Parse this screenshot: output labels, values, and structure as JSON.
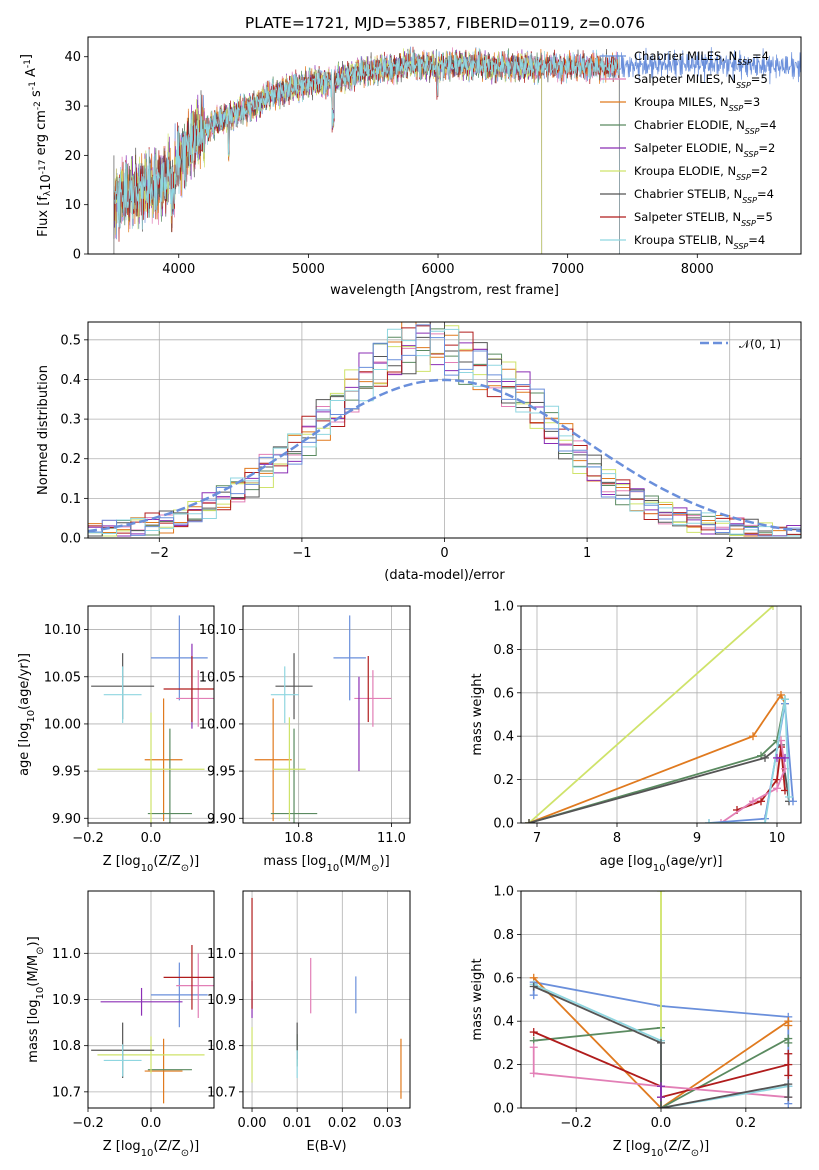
{
  "title": "PLATE=1721, MJD=53857, FIBERID=0119, z=0.076",
  "colors": {
    "chabrier_miles": "#6a8fdb",
    "salpeter_miles": "#e27fb6",
    "kroupa_miles": "#e07a1f",
    "chabrier_elodie": "#5a8a60",
    "salpeter_elodie": "#8b2fb5",
    "kroupa_elodie": "#cfe36a",
    "chabrier_stelib": "#555555",
    "salpeter_stelib": "#b01c1c",
    "kroupa_stelib": "#8fd6e0",
    "normal": "#6a8fdb"
  },
  "chart_data": [
    {
      "id": "spectrum",
      "type": "line",
      "xlabel": "wavelength [Angstrom, rest frame]",
      "ylabel": "Flux [f",
      "ylabel_sub": "λ",
      "ylabel_rest": "10",
      "ylabel_sup1": "-17",
      "ylabel_rest2": " erg cm",
      "ylabel_sup2": "-2",
      "ylabel_rest3": " s",
      "ylabel_sup3": "-1",
      "ylabel_rest4": " A",
      "ylabel_sup4": "-1",
      "ylabel_end": "]",
      "xlim": [
        3300,
        8800
      ],
      "ylim": [
        0,
        44
      ],
      "xticks": [
        "4000",
        "5000",
        "6000",
        "7000",
        "8000"
      ],
      "xtick_values": [
        4000,
        5000,
        6000,
        7000,
        8000
      ],
      "yticks": [
        "0",
        "10",
        "20",
        "30",
        "40"
      ],
      "ytick_values": [
        0,
        10,
        20,
        30,
        40
      ],
      "legend_position": "upper right",
      "continuum": [
        [
          3500,
          11
        ],
        [
          3700,
          13
        ],
        [
          3900,
          15
        ],
        [
          4000,
          19
        ],
        [
          4100,
          23
        ],
        [
          4300,
          27
        ],
        [
          4500,
          29
        ],
        [
          4700,
          32
        ],
        [
          4900,
          34
        ],
        [
          5100,
          35
        ],
        [
          5200,
          35
        ],
        [
          5400,
          37
        ],
        [
          5600,
          37.5
        ],
        [
          5800,
          38.5
        ],
        [
          6000,
          38
        ],
        [
          6200,
          38.5
        ],
        [
          6400,
          38
        ],
        [
          6600,
          38
        ],
        [
          6800,
          38
        ],
        [
          7000,
          38
        ],
        [
          7200,
          38
        ],
        [
          7400,
          38
        ],
        [
          7800,
          38.5
        ],
        [
          8200,
          38.5
        ],
        [
          8700,
          38
        ]
      ],
      "series": [
        {
          "name": "Chabrier MILES",
          "nssp": "4",
          "color_key": "chabrier_miles",
          "end": 8800
        },
        {
          "name": "Salpeter MILES",
          "nssp": "5",
          "color_key": "salpeter_miles",
          "end": 7400
        },
        {
          "name": "Kroupa MILES",
          "nssp": "3",
          "color_key": "kroupa_miles",
          "end": 7400
        },
        {
          "name": "Chabrier ELODIE",
          "nssp": "4",
          "color_key": "chabrier_elodie",
          "end": 6800
        },
        {
          "name": "Salpeter ELODIE",
          "nssp": "2",
          "color_key": "salpeter_elodie",
          "end": 6800
        },
        {
          "name": "Kroupa ELODIE",
          "nssp": "2",
          "color_key": "kroupa_elodie",
          "end": 6800
        },
        {
          "name": "Chabrier STELIB",
          "nssp": "4",
          "color_key": "chabrier_stelib",
          "end": 7400
        },
        {
          "name": "Salpeter STELIB",
          "nssp": "5",
          "color_key": "salpeter_stelib",
          "end": 7400
        },
        {
          "name": "Kroupa STELIB",
          "nssp": "4",
          "color_key": "kroupa_stelib",
          "end": 7400
        }
      ],
      "legend_subscript": "SSP",
      "legend_nprefix": "N"
    },
    {
      "id": "residuals",
      "type": "histogram",
      "xlabel": "(data-model)/error",
      "ylabel": "Normed distribution",
      "xlim": [
        -2.5,
        2.5
      ],
      "ylim": [
        0,
        0.545
      ],
      "xticks": [
        "−2",
        "−1",
        "0",
        "1",
        "2"
      ],
      "xtick_values": [
        -2,
        -1,
        0,
        1,
        2
      ],
      "yticks": [
        "0.0",
        "0.1",
        "0.2",
        "0.3",
        "0.4",
        "0.5"
      ],
      "ytick_values": [
        0,
        0.1,
        0.2,
        0.3,
        0.4,
        0.5
      ],
      "bin_width": 0.1,
      "bins_start": -2.5,
      "legend_label": "𝒩(0, 1)",
      "series_envelope": [
        0.015,
        0.02,
        0.025,
        0.03,
        0.035,
        0.04,
        0.05,
        0.065,
        0.08,
        0.1,
        0.12,
        0.14,
        0.17,
        0.2,
        0.23,
        0.26,
        0.3,
        0.33,
        0.37,
        0.4,
        0.43,
        0.46,
        0.48,
        0.49,
        0.49,
        0.48,
        0.46,
        0.44,
        0.42,
        0.39,
        0.36,
        0.32,
        0.28,
        0.24,
        0.2,
        0.17,
        0.14,
        0.12,
        0.1,
        0.08,
        0.065,
        0.05,
        0.04,
        0.035,
        0.03,
        0.025,
        0.02,
        0.015,
        0.012,
        0.01
      ],
      "legend_position": "upper right"
    },
    {
      "id": "age_vs_Z",
      "type": "scatter",
      "xlabel": "Z [log",
      "xlabel_sub": "10",
      "xlabel_rest": "(Z/Z",
      "xlabel_sun": "⊙",
      "xlabel_end": ")]",
      "ylabel": "age  [log",
      "ylabel_sub": "10",
      "ylabel_rest": "(age/yr)]",
      "xlim": [
        -0.2,
        0.2
      ],
      "ylim": [
        9.895,
        10.125
      ],
      "xticks": [
        "−0.2",
        "0.0"
      ],
      "xtick_values": [
        -0.2,
        0.0
      ],
      "yticks": [
        "9.90",
        "9.95",
        "10.00",
        "10.05",
        "10.10"
      ],
      "ytick_values": [
        9.9,
        9.95,
        10.0,
        10.05,
        10.1
      ],
      "points": [
        {
          "color_key": "chabrier_miles",
          "x": 0.09,
          "y": 10.07,
          "xerr": 0.09,
          "yerr": 0.045
        },
        {
          "color_key": "salpeter_miles",
          "x": 0.15,
          "y": 10.027,
          "xerr": 0.07,
          "yerr": 0.03
        },
        {
          "color_key": "kroupa_miles",
          "x": 0.04,
          "y": 9.962,
          "xerr": 0.06,
          "yerr": 0.065
        },
        {
          "color_key": "chabrier_elodie",
          "x": 0.06,
          "y": 9.905,
          "xerr": 0.07,
          "yerr": 0.09
        },
        {
          "color_key": "salpeter_elodie",
          "x": 0.13,
          "y": 10.04,
          "xerr": 0.0,
          "yerr": 0.045
        },
        {
          "color_key": "kroupa_elodie",
          "x": 0.0,
          "y": 9.952,
          "xerr": 0.17,
          "yerr": 0.06
        },
        {
          "color_key": "chabrier_stelib",
          "x": -0.09,
          "y": 10.04,
          "xerr": 0.1,
          "yerr": 0.035
        },
        {
          "color_key": "salpeter_stelib",
          "x": 0.13,
          "y": 10.037,
          "xerr": 0.09,
          "yerr": 0.035
        },
        {
          "color_key": "kroupa_stelib",
          "x": -0.09,
          "y": 10.031,
          "xerr": 0.06,
          "yerr": 0.03
        }
      ]
    },
    {
      "id": "age_vs_mass",
      "type": "scatter",
      "xlabel": "mass [log",
      "xlabel_sub": "10",
      "xlabel_rest": "(M/M",
      "xlabel_sun": "⊙",
      "xlabel_end": ")]",
      "xlim": [
        10.68,
        11.04
      ],
      "ylim": [
        9.895,
        10.125
      ],
      "xticks": [
        "10.8",
        "11.0"
      ],
      "xtick_values": [
        10.8,
        11.0
      ],
      "yticks": [
        "9.90",
        "9.95",
        "10.00",
        "10.05",
        "10.10"
      ],
      "ytick_values": [
        9.9,
        9.95,
        10.0,
        10.05,
        10.1
      ],
      "points": [
        {
          "color_key": "chabrier_miles",
          "x": 10.91,
          "y": 10.07,
          "xerr": 0.035,
          "yerr": 0.045
        },
        {
          "color_key": "salpeter_miles",
          "x": 10.96,
          "y": 10.027,
          "xerr": 0.04,
          "yerr": 0.03
        },
        {
          "color_key": "kroupa_miles",
          "x": 10.745,
          "y": 9.962,
          "xerr": 0.04,
          "yerr": 0.065
        },
        {
          "color_key": "chabrier_elodie",
          "x": 10.79,
          "y": 9.905,
          "xerr": 0.05,
          "yerr": 0.09
        },
        {
          "color_key": "salpeter_elodie",
          "x": 10.93,
          "y": 10.0,
          "xerr": 0.0,
          "yerr": 0.05
        },
        {
          "color_key": "kroupa_elodie",
          "x": 10.78,
          "y": 9.952,
          "xerr": 0.035,
          "yerr": 0.055
        },
        {
          "color_key": "chabrier_stelib",
          "x": 10.79,
          "y": 10.04,
          "xerr": 0.04,
          "yerr": 0.035
        },
        {
          "color_key": "salpeter_stelib",
          "x": 10.95,
          "y": 10.037,
          "xerr": 0.0,
          "yerr": 0.035
        },
        {
          "color_key": "kroupa_stelib",
          "x": 10.77,
          "y": 10.031,
          "xerr": 0.03,
          "yerr": 0.03
        }
      ]
    },
    {
      "id": "weight_vs_age",
      "type": "line",
      "xlabel": "age  [log",
      "xlabel_sub": "10",
      "xlabel_rest": "(age/yr)]",
      "ylabel": "mass weight",
      "xlim": [
        6.8,
        10.3
      ],
      "ylim": [
        0,
        1
      ],
      "xticks": [
        "7",
        "8",
        "9",
        "10"
      ],
      "xtick_values": [
        7,
        8,
        9,
        10
      ],
      "yticks": [
        "0.0",
        "0.2",
        "0.4",
        "0.6",
        "0.8",
        "1.0"
      ],
      "ytick_values": [
        0,
        0.2,
        0.4,
        0.6,
        0.8,
        1.0
      ],
      "series": [
        {
          "color_key": "kroupa_elodie",
          "x": [
            6.9,
            9.95
          ],
          "y": [
            0.0,
            1.0
          ]
        },
        {
          "color_key": "kroupa_miles",
          "x": [
            6.9,
            9.7,
            10.05,
            10.1
          ],
          "y": [
            0.0,
            0.4,
            0.59,
            0.55
          ]
        },
        {
          "color_key": "chabrier_elodie",
          "x": [
            6.9,
            9.8,
            10.0,
            10.1
          ],
          "y": [
            0.0,
            0.31,
            0.38,
            0.57
          ]
        },
        {
          "color_key": "chabrier_stelib",
          "x": [
            6.9,
            9.85,
            10.05,
            10.15
          ],
          "y": [
            0.0,
            0.3,
            0.36,
            0.1
          ]
        },
        {
          "color_key": "salpeter_stelib",
          "x": [
            9.5,
            9.8,
            10.0,
            10.05,
            10.1
          ],
          "y": [
            0.06,
            0.1,
            0.2,
            0.35,
            0.15
          ]
        },
        {
          "color_key": "salpeter_miles",
          "x": [
            9.3,
            9.7,
            10.0,
            10.1,
            10.05
          ],
          "y": [
            0.0,
            0.1,
            0.16,
            0.25,
            0.38
          ]
        },
        {
          "color_key": "chabrier_miles",
          "x": [
            9.15,
            9.85,
            10.1,
            10.2
          ],
          "y": [
            0.0,
            0.02,
            0.55,
            0.1
          ]
        },
        {
          "color_key": "kroupa_stelib",
          "x": [
            9.15,
            9.85,
            10.1,
            10.15
          ],
          "y": [
            0.0,
            0.0,
            0.57,
            0.12
          ]
        },
        {
          "color_key": "salpeter_elodie",
          "x": [
            10.0,
            10.1
          ],
          "y": [
            0.3,
            0.3
          ]
        }
      ]
    },
    {
      "id": "mass_vs_Z",
      "type": "scatter",
      "xlabel": "Z [log",
      "xlabel_sub": "10",
      "xlabel_rest": "(Z/Z",
      "xlabel_sun": "⊙",
      "xlabel_end": ")]",
      "ylabel": "mass [log",
      "ylabel_sub": "10",
      "ylabel_rest": "(M/M",
      "ylabel_sun": "⊙",
      "ylabel_end": ")]",
      "xlim": [
        -0.2,
        0.2
      ],
      "ylim": [
        10.665,
        11.135
      ],
      "xticks": [
        "−0.2",
        "0.0"
      ],
      "xtick_values": [
        -0.2,
        0.0
      ],
      "yticks": [
        "10.7",
        "10.8",
        "10.9",
        "11.0"
      ],
      "ytick_values": [
        10.7,
        10.8,
        10.9,
        11.0
      ],
      "points": [
        {
          "color_key": "chabrier_miles",
          "x": 0.09,
          "y": 10.91,
          "xerr": 0.09,
          "yerr": 0.07
        },
        {
          "color_key": "salpeter_miles",
          "x": 0.15,
          "y": 10.93,
          "xerr": 0.07,
          "yerr": 0.07
        },
        {
          "color_key": "kroupa_miles",
          "x": 0.04,
          "y": 10.745,
          "xerr": 0.06,
          "yerr": 0.07
        },
        {
          "color_key": "chabrier_elodie",
          "x": 0.06,
          "y": 10.748,
          "xerr": 0.07,
          "yerr": 0.0
        },
        {
          "color_key": "salpeter_elodie",
          "x": -0.03,
          "y": 10.895,
          "xerr": 0.13,
          "yerr": 0.03
        },
        {
          "color_key": "kroupa_elodie",
          "x": 0.0,
          "y": 10.78,
          "xerr": 0.17,
          "yerr": 0.04
        },
        {
          "color_key": "chabrier_stelib",
          "x": -0.09,
          "y": 10.79,
          "xerr": 0.1,
          "yerr": 0.06
        },
        {
          "color_key": "salpeter_stelib",
          "x": 0.13,
          "y": 10.948,
          "xerr": 0.09,
          "yerr": 0.07
        },
        {
          "color_key": "kroupa_stelib",
          "x": -0.09,
          "y": 10.768,
          "xerr": 0.06,
          "yerr": 0.035
        }
      ]
    },
    {
      "id": "mass_vs_ebv",
      "type": "scatter",
      "xlabel": "E(B-V)",
      "xlim": [
        -0.002,
        0.035
      ],
      "ylim": [
        10.665,
        11.135
      ],
      "xticks": [
        "0.00",
        "0.01",
        "0.02",
        "0.03"
      ],
      "xtick_values": [
        0.0,
        0.01,
        0.02,
        0.03
      ],
      "yticks": [
        "10.7",
        "10.8",
        "10.9",
        "11.0"
      ],
      "ytick_values": [
        10.7,
        10.8,
        10.9,
        11.0
      ],
      "points": [
        {
          "color_key": "chabrier_miles",
          "x": 0.023,
          "y": 10.91,
          "xerr": 0,
          "yerr": 0.04
        },
        {
          "color_key": "salpeter_miles",
          "x": 0.013,
          "y": 10.93,
          "xerr": 0,
          "yerr": 0.06
        },
        {
          "color_key": "kroupa_miles",
          "x": 0.033,
          "y": 10.75,
          "xerr": 0,
          "yerr": 0.065
        },
        {
          "color_key": "chabrier_elodie",
          "x": 0.01,
          "y": 10.79,
          "xerr": 0,
          "yerr": 0.035
        },
        {
          "color_key": "salpeter_elodie",
          "x": 0.0,
          "y": 10.9,
          "xerr": 0,
          "yerr": 0.04
        },
        {
          "color_key": "kroupa_elodie",
          "x": 0.0,
          "y": 10.78,
          "xerr": 0,
          "yerr": 0.06
        },
        {
          "color_key": "chabrier_stelib",
          "x": 0.01,
          "y": 10.81,
          "xerr": 0,
          "yerr": 0.04
        },
        {
          "color_key": "salpeter_stelib",
          "x": 0.0,
          "y": 11.0,
          "xerr": 0,
          "yerr": 0.12
        },
        {
          "color_key": "kroupa_stelib",
          "x": 0.01,
          "y": 10.76,
          "xerr": 0,
          "yerr": 0.03
        }
      ]
    },
    {
      "id": "weight_vs_Z",
      "type": "line",
      "xlabel": "Z [log",
      "xlabel_sub": "10",
      "xlabel_rest": "(Z/Z",
      "xlabel_sun": "⊙",
      "xlabel_end": ")]",
      "ylabel": "mass weight",
      "xlim": [
        -0.33,
        0.33
      ],
      "ylim": [
        0,
        1
      ],
      "xticks": [
        "−0.2",
        "0.0",
        "0.2"
      ],
      "xtick_values": [
        -0.2,
        0.0,
        0.2
      ],
      "yticks": [
        "0.0",
        "0.2",
        "0.4",
        "0.6",
        "0.8",
        "1.0"
      ],
      "ytick_values": [
        0,
        0.2,
        0.4,
        0.6,
        0.8,
        1.0
      ],
      "series": [
        {
          "color_key": "chabrier_miles",
          "x": [
            -0.3,
            -0.3,
            0.0,
            0.3,
            0.3,
            0.3
          ],
          "y": [
            0.52,
            0.58,
            0.47,
            0.42,
            0.02,
            0.1
          ]
        },
        {
          "color_key": "kroupa_miles",
          "x": [
            -0.3,
            0.0,
            0.3,
            0.3
          ],
          "y": [
            0.6,
            0.0,
            0.4,
            0.38
          ]
        },
        {
          "color_key": "chabrier_elodie",
          "x": [
            -0.3,
            0.0,
            0.0,
            0.3,
            0.3
          ],
          "y": [
            0.31,
            0.37,
            0.0,
            0.32,
            0.3
          ]
        },
        {
          "color_key": "kroupa_elodie",
          "x": [
            0.0,
            0.0
          ],
          "y": [
            0.0,
            1.0
          ]
        },
        {
          "color_key": "salpeter_stelib",
          "x": [
            -0.3,
            0.0,
            0.0,
            0.3,
            0.3,
            0.3
          ],
          "y": [
            0.35,
            0.1,
            0.05,
            0.2,
            0.25,
            0.15
          ]
        },
        {
          "color_key": "salpeter_miles",
          "x": [
            -0.3,
            -0.3,
            0.0,
            0.3
          ],
          "y": [
            0.28,
            0.16,
            0.1,
            0.05
          ]
        },
        {
          "color_key": "kroupa_stelib",
          "x": [
            -0.3,
            0.0,
            0.0,
            0.3
          ],
          "y": [
            0.57,
            0.31,
            0.0,
            0.1
          ]
        },
        {
          "color_key": "chabrier_stelib",
          "x": [
            -0.3,
            0.0,
            0.0,
            0.3,
            0.3
          ],
          "y": [
            0.56,
            0.3,
            0.0,
            0.11,
            0.05
          ]
        },
        {
          "color_key": "salpeter_elodie",
          "x": [
            0.0,
            0.0
          ],
          "y": [
            0.05,
            0.1
          ]
        }
      ]
    }
  ]
}
